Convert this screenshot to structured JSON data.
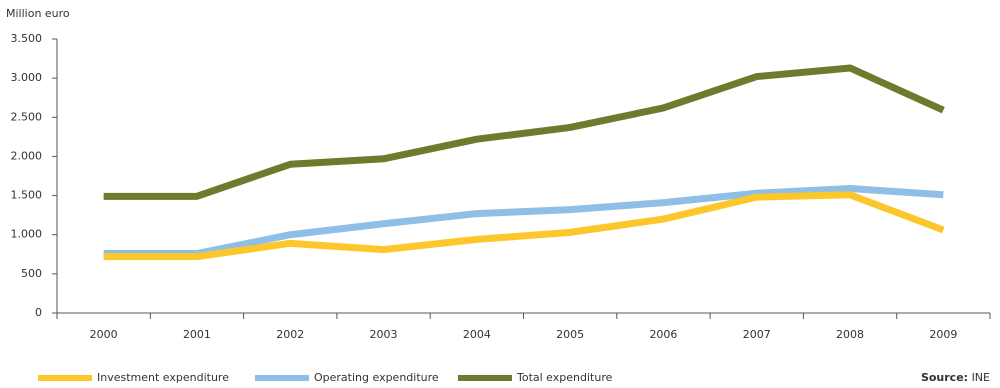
{
  "chart_data": {
    "type": "line",
    "y_axis_label": "Million euro",
    "categories": [
      "2000",
      "2001",
      "2002",
      "2003",
      "2004",
      "2005",
      "2006",
      "2007",
      "2008",
      "2009"
    ],
    "series": [
      {
        "name": "Investment expenditure",
        "color": "#fcc72b",
        "values": [
          720,
          720,
          890,
          810,
          940,
          1030,
          1200,
          1480,
          1510,
          1060
        ]
      },
      {
        "name": "Operating expenditure",
        "color": "#8fbfe6",
        "values": [
          760,
          760,
          1000,
          1140,
          1270,
          1320,
          1410,
          1530,
          1590,
          1510
        ]
      },
      {
        "name": "Total expenditure",
        "color": "#6e7a2c",
        "values": [
          1490,
          1490,
          1900,
          1970,
          2220,
          2370,
          2620,
          3020,
          3130,
          2590
        ]
      }
    ],
    "ylim": [
      0,
      3500
    ],
    "yticks": [
      0,
      500,
      {
        "value": 1000,
        "label": "1.000"
      },
      {
        "value": 1500,
        "label": "1.500"
      },
      {
        "value": 2000,
        "label": "2.000"
      },
      {
        "value": 2500,
        "label": "2.500"
      },
      {
        "value": 3000,
        "label": "3.000"
      },
      {
        "value": 3500,
        "label": "3.500"
      }
    ],
    "source_label": "Source:",
    "source": "INE"
  }
}
